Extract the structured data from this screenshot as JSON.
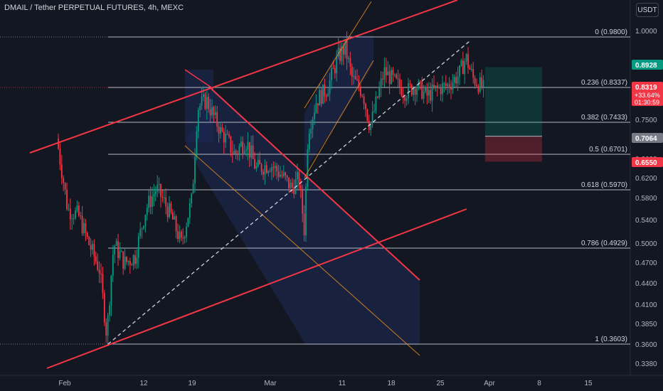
{
  "header": {
    "title": "DMAIL / Tether PERPETUAL FUTURES, 4h, MEXC",
    "unit": "USDT"
  },
  "chart_data": {
    "type": "candlestick",
    "title": "DMAIL / Tether PERPETUAL FUTURES, 4h, MEXC",
    "price_axis_ticks": [
      "1.0000",
      "0.9000",
      "0.8000",
      "0.7500",
      "0.7000",
      "0.6600",
      "0.6200",
      "0.5800",
      "0.5400",
      "0.5000",
      "0.4700",
      "0.4400",
      "0.4100",
      "0.3850",
      "0.3600",
      "0.3380"
    ],
    "date_axis_ticks": [
      "Feb",
      "12",
      "19",
      "Mar",
      "11",
      "18",
      "25",
      "Apr",
      "8",
      "15"
    ],
    "fib_levels": [
      {
        "label": "0 (0.9800)",
        "price": 0.98
      },
      {
        "label": "0.236 (0.8337)",
        "price": 0.8337
      },
      {
        "label": "0.382 (0.7433)",
        "price": 0.7433
      },
      {
        "label": "0.5 (0.6701)",
        "price": 0.6701
      },
      {
        "label": "0.618 (0.5970)",
        "price": 0.597
      },
      {
        "label": "0.786 (0.4929)",
        "price": 0.4929
      },
      {
        "label": "1 (0.3603)",
        "price": 0.3603
      }
    ],
    "price_tags": [
      {
        "value": "0.8928",
        "color": "#089981"
      },
      {
        "value": "0.8319",
        "extra": [
          "+33.64%",
          "01:30:59"
        ],
        "color": "#f23645"
      },
      {
        "value": "0.7064",
        "color": "#787b86"
      },
      {
        "value": "0.6550",
        "color": "#f23645"
      }
    ],
    "trade_setup": {
      "target": 0.8928,
      "entry": 0.7064,
      "stop": 0.655
    }
  }
}
